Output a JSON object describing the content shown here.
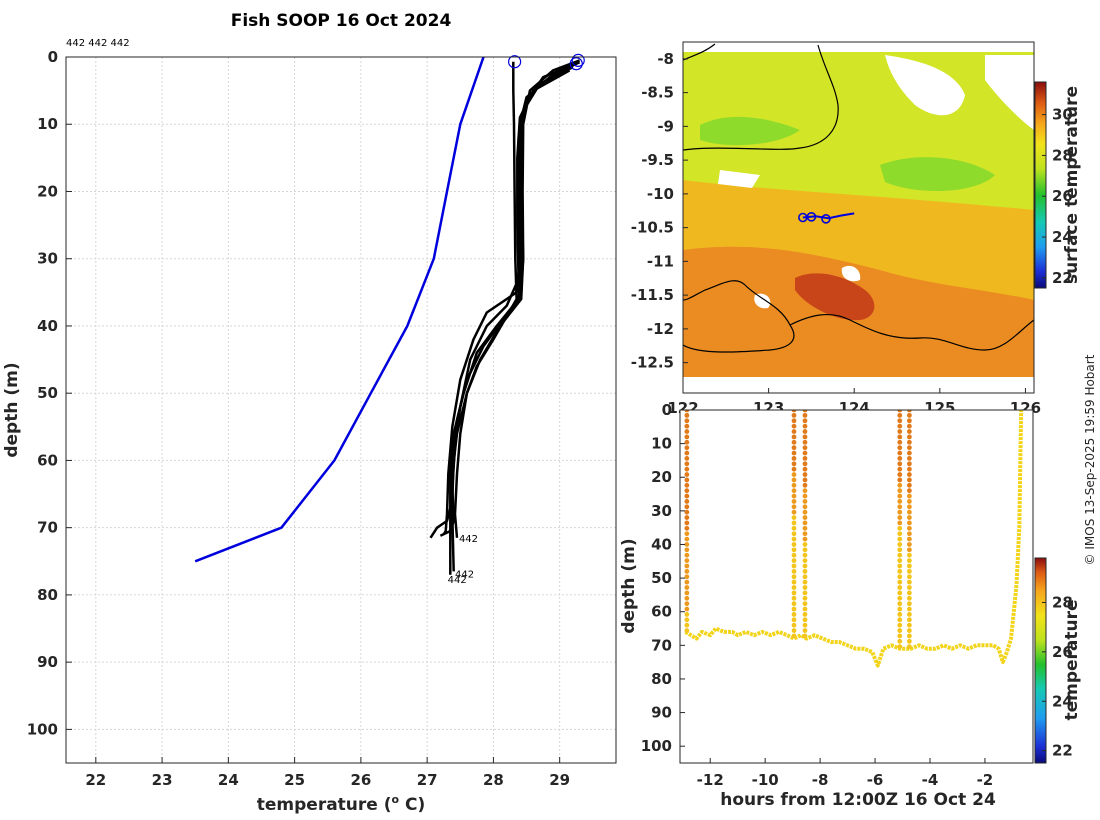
{
  "title": "Fish SOOP 16 Oct 2024",
  "credit": "© IMOS 13-Sep-2025 19:59 Hobart",
  "colors": {
    "model": "#0000dd",
    "obs": "#000000",
    "marker": "#0000dd"
  },
  "chart_data": [
    {
      "type": "line",
      "name": "profiles",
      "title": "Fish SOOP 16 Oct 2024",
      "id_label_top": "442 442 442",
      "xlabel": "temperature (",
      "xlabel_sup": "o",
      "xlabel_end": " C)",
      "ylabel": "depth (m)",
      "xlim": [
        21.55,
        29.85
      ],
      "ylim": [
        0,
        105
      ],
      "yreversed": true,
      "xticks": [
        22,
        23,
        24,
        25,
        26,
        27,
        28,
        29
      ],
      "yticks": [
        0,
        10,
        20,
        30,
        40,
        50,
        60,
        70,
        80,
        90,
        100
      ],
      "grid": true,
      "series": [
        {
          "name": "reference profile",
          "color": "#0000dd",
          "points": [
            [
              27.85,
              0
            ],
            [
              27.5,
              10
            ],
            [
              27.3,
              20
            ],
            [
              27.1,
              30
            ],
            [
              26.7,
              40
            ],
            [
              26.15,
              50
            ],
            [
              25.6,
              60
            ],
            [
              24.8,
              70
            ],
            [
              23.5,
              75
            ]
          ]
        },
        {
          "name": "cast",
          "color": "#000000",
          "points": [
            [
              28.3,
              0.7
            ],
            [
              28.3,
              5
            ],
            [
              28.31,
              10
            ],
            [
              28.32,
              20
            ],
            [
              28.33,
              30
            ],
            [
              28.35,
              36
            ],
            [
              28.0,
              42
            ],
            [
              27.75,
              46
            ],
            [
              27.6,
              50
            ],
            [
              27.5,
              56
            ],
            [
              27.45,
              62
            ],
            [
              27.42,
              68
            ],
            [
              27.45,
              71.5
            ]
          ]
        },
        {
          "name": "cast",
          "color": "#000000",
          "points": [
            [
              29.3,
              0.5
            ],
            [
              28.9,
              2
            ],
            [
              28.55,
              5
            ],
            [
              28.45,
              10
            ],
            [
              28.44,
              20
            ],
            [
              28.45,
              30
            ],
            [
              28.42,
              36
            ],
            [
              28.1,
              40
            ],
            [
              27.8,
              45
            ],
            [
              27.6,
              50
            ],
            [
              27.45,
              56
            ],
            [
              27.38,
              62
            ],
            [
              27.38,
              68
            ],
            [
              27.4,
              76.5
            ]
          ]
        },
        {
          "name": "cast",
          "color": "#000000",
          "points": [
            [
              29.25,
              1
            ],
            [
              28.85,
              3
            ],
            [
              28.5,
              6
            ],
            [
              28.4,
              10
            ],
            [
              28.4,
              20
            ],
            [
              28.42,
              30
            ],
            [
              28.38,
              36
            ],
            [
              28.05,
              40
            ],
            [
              27.75,
              44
            ],
            [
              27.55,
              50
            ],
            [
              27.4,
              56
            ],
            [
              27.35,
              62
            ],
            [
              27.35,
              68
            ],
            [
              27.35,
              77
            ]
          ]
        },
        {
          "name": "cast",
          "color": "#000000",
          "points": [
            [
              29.2,
              1.5
            ],
            [
              28.7,
              4
            ],
            [
              28.45,
              8
            ],
            [
              28.38,
              12
            ],
            [
              28.38,
              20
            ],
            [
              28.4,
              30
            ],
            [
              28.35,
              35
            ],
            [
              27.9,
              38
            ],
            [
              27.7,
              42
            ],
            [
              27.5,
              48
            ],
            [
              27.38,
              55
            ],
            [
              27.32,
              62
            ],
            [
              27.3,
              68
            ],
            [
              27.28,
              70.5
            ],
            [
              27.25,
              71
            ]
          ]
        },
        {
          "name": "cast",
          "color": "#000000",
          "points": [
            [
              29.3,
              0.8
            ],
            [
              28.75,
              3
            ],
            [
              28.48,
              7
            ],
            [
              28.42,
              12
            ],
            [
              28.42,
              20
            ],
            [
              28.45,
              30
            ],
            [
              28.4,
              36
            ],
            [
              28.15,
              39
            ],
            [
              27.85,
              43
            ],
            [
              27.6,
              48
            ],
            [
              27.45,
              54
            ],
            [
              27.4,
              60
            ],
            [
              27.38,
              66
            ],
            [
              27.3,
              69
            ],
            [
              27.15,
              70
            ],
            [
              27.05,
              71.5
            ]
          ]
        },
        {
          "name": "cast",
          "color": "#000000",
          "points": [
            [
              29.15,
              2
            ],
            [
              28.6,
              5
            ],
            [
              28.4,
              9
            ],
            [
              28.36,
              15
            ],
            [
              28.36,
              25
            ],
            [
              28.38,
              33
            ],
            [
              28.2,
              37
            ],
            [
              27.9,
              40
            ],
            [
              27.65,
              45
            ],
            [
              27.5,
              52
            ],
            [
              27.42,
              58
            ],
            [
              27.38,
              64
            ],
            [
              27.4,
              69
            ],
            [
              27.35,
              70.5
            ],
            [
              27.2,
              71.2
            ]
          ]
        }
      ],
      "markers": [
        [
          28.32,
          0.7
        ],
        [
          29.28,
          0.5
        ],
        [
          29.25,
          1.0
        ]
      ],
      "labels": [
        {
          "text": "442",
          "x": 27.48,
          "y": 71.5
        },
        {
          "text": "442",
          "x": 27.42,
          "y": 76.8
        },
        {
          "text": "442",
          "x": 27.31,
          "y": 77.6
        }
      ]
    },
    {
      "type": "heatmap",
      "name": "sst map",
      "xlim": [
        122.0,
        126.1
      ],
      "ylim": [
        -12.95,
        -7.75
      ],
      "xticks": [
        122,
        123,
        124,
        125,
        126
      ],
      "xticklabels": [
        "122",
        "123",
        "124",
        "125",
        "126"
      ],
      "yticks": [
        -8,
        -8.5,
        -9,
        -9.5,
        -10,
        -10.5,
        -11,
        -11.5,
        -12,
        -12.5
      ],
      "yticklabels": [
        "-8",
        "-8.5",
        "-9",
        "-9.5",
        "-10",
        "-10.5",
        "-11",
        "-11.5",
        "-12",
        "-12.5"
      ],
      "colorbar_label": "surface temperature",
      "colorbar_range": [
        21.5,
        31.6
      ],
      "colorbar_ticks": [
        22,
        24,
        26,
        28,
        30
      ],
      "track": [
        [
          123.4,
          -10.35
        ],
        [
          123.55,
          -10.33
        ],
        [
          123.7,
          -10.36
        ],
        [
          123.85,
          -10.32
        ],
        [
          124.0,
          -10.29
        ]
      ],
      "track_markers": [
        [
          123.4,
          -10.35
        ],
        [
          123.5,
          -10.34
        ],
        [
          123.67,
          -10.37
        ]
      ]
    },
    {
      "type": "scatter",
      "name": "section",
      "xlabel": "hours from 12:00Z 16 Oct 24",
      "ylabel": "depth (m)",
      "xlim": [
        -13.1,
        -0.25
      ],
      "ylim": [
        0,
        105
      ],
      "yreversed": true,
      "xticks": [
        -12,
        -10,
        -8,
        -6,
        -4,
        -2
      ],
      "yticks": [
        0,
        10,
        20,
        30,
        40,
        50,
        60,
        70,
        80,
        90,
        100
      ],
      "colorbar_label": "temperature",
      "colorbar_range": [
        21.5,
        29.8
      ],
      "colorbar_ticks": [
        22,
        24,
        26,
        28
      ],
      "bottom_trace": [
        [
          -12.9,
          66
        ],
        [
          -12.7,
          67
        ],
        [
          -12.5,
          68
        ],
        [
          -12.3,
          66
        ],
        [
          -12.0,
          67
        ],
        [
          -11.8,
          65
        ],
        [
          -11.5,
          66
        ],
        [
          -11.2,
          66
        ],
        [
          -11.0,
          67
        ],
        [
          -10.7,
          66
        ],
        [
          -10.4,
          67
        ],
        [
          -10.1,
          66
        ],
        [
          -9.8,
          67
        ],
        [
          -9.5,
          66
        ],
        [
          -9.2,
          67
        ],
        [
          -8.95,
          68
        ],
        [
          -8.7,
          67
        ],
        [
          -8.5,
          68
        ],
        [
          -8.2,
          67
        ],
        [
          -7.9,
          68
        ],
        [
          -7.6,
          69
        ],
        [
          -7.3,
          69
        ],
        [
          -7.0,
          70
        ],
        [
          -6.7,
          71
        ],
        [
          -6.4,
          71
        ],
        [
          -6.1,
          72
        ],
        [
          -5.9,
          76
        ],
        [
          -5.7,
          71
        ],
        [
          -5.4,
          70
        ],
        [
          -5.1,
          71
        ],
        [
          -4.7,
          71
        ],
        [
          -4.4,
          70
        ],
        [
          -4.1,
          71
        ],
        [
          -3.8,
          71
        ],
        [
          -3.5,
          70
        ],
        [
          -3.2,
          71
        ],
        [
          -2.9,
          70
        ],
        [
          -2.6,
          71
        ],
        [
          -2.3,
          70
        ],
        [
          -2.0,
          70
        ],
        [
          -1.7,
          70
        ],
        [
          -1.5,
          71
        ],
        [
          -1.35,
          75
        ],
        [
          -1.2,
          72
        ],
        [
          -1.05,
          68
        ],
        [
          -0.95,
          60
        ],
        [
          -0.85,
          52
        ],
        [
          -0.75,
          35
        ],
        [
          -0.7,
          10
        ],
        [
          -0.68,
          0
        ]
      ],
      "casts": [
        {
          "hour": -12.85,
          "bottom": 66,
          "thermocline": 60
        },
        {
          "hour": -8.95,
          "bottom": 68,
          "thermocline": 32
        },
        {
          "hour": -8.55,
          "bottom": 68,
          "thermocline": 40
        },
        {
          "hour": -5.1,
          "bottom": 71,
          "thermocline": 35
        },
        {
          "hour": -4.75,
          "bottom": 71,
          "thermocline": 42
        }
      ]
    }
  ]
}
